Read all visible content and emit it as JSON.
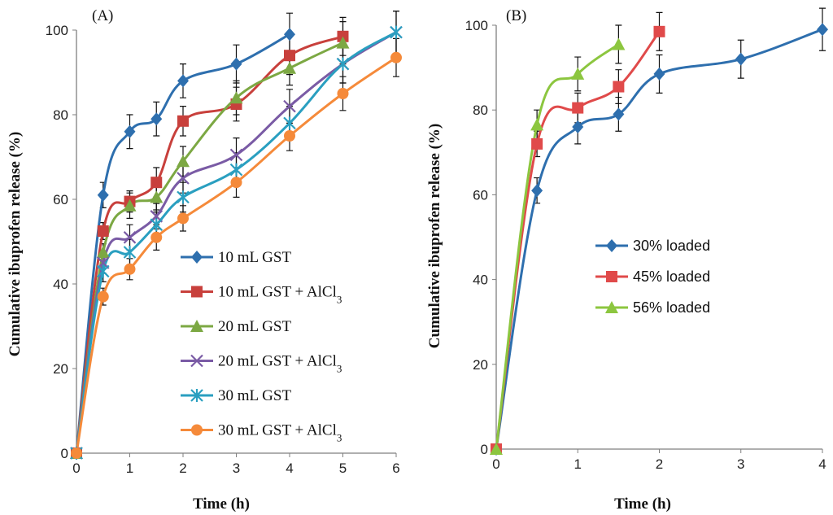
{
  "chart_data": [
    {
      "panel": "(A)",
      "type": "line",
      "xlabel": "Time (h)",
      "ylabel": "Cumulative ibuprofen release  (%)",
      "xlim": [
        0,
        6
      ],
      "ylim": [
        0,
        100
      ],
      "xticks": [
        0,
        1,
        2,
        3,
        4,
        5,
        6
      ],
      "yticks": [
        0,
        20,
        40,
        60,
        80,
        100
      ],
      "legend_position": "center-right",
      "series": [
        {
          "name": "10 mL GST",
          "base": "10 mL GST",
          "sub": "",
          "color": "#2e6fae",
          "marker": "diamond",
          "x": [
            0,
            0.5,
            1,
            1.5,
            2,
            3,
            4
          ],
          "y": [
            0,
            61,
            76,
            79,
            88,
            92,
            99
          ],
          "err": [
            0,
            3,
            4,
            4,
            4,
            4.5,
            5
          ]
        },
        {
          "name": "10 mL GST + AlCl3",
          "base": "10 mL GST + AlCl",
          "sub": "3",
          "color": "#c8403c",
          "marker": "square",
          "x": [
            0,
            0.5,
            1,
            1.5,
            2,
            3,
            4,
            5
          ],
          "y": [
            0,
            52.5,
            59.5,
            64,
            78.5,
            82.5,
            94,
            98.5
          ],
          "err": [
            0,
            2,
            2.5,
            3.5,
            3.5,
            4,
            4.5,
            4.5
          ]
        },
        {
          "name": "20 mL GST",
          "base": "20 mL GST",
          "sub": "",
          "color": "#7ca843",
          "marker": "triangle",
          "x": [
            0,
            0.5,
            1,
            1.5,
            2,
            3,
            4,
            5
          ],
          "y": [
            0,
            47.5,
            58.5,
            60.5,
            69,
            84,
            91,
            97
          ],
          "err": [
            0,
            2,
            3,
            3,
            3.5,
            4,
            4,
            5
          ]
        },
        {
          "name": "20 mL GST + AlCl3",
          "base": "20 mL GST + AlCl",
          "sub": "3",
          "color": "#7a5ba5",
          "marker": "x",
          "x": [
            0,
            0.5,
            1,
            1.5,
            2,
            3,
            4,
            5,
            6
          ],
          "y": [
            0,
            45,
            51,
            56,
            65,
            70.5,
            82,
            92,
            99.5
          ],
          "err": [
            0,
            2.5,
            3,
            3,
            3.5,
            4,
            4,
            4.5,
            5
          ]
        },
        {
          "name": "30 mL GST",
          "base": "30 mL GST",
          "sub": "",
          "color": "#2a9fc0",
          "marker": "asterisk",
          "x": [
            0,
            0.5,
            1,
            1.5,
            2,
            3,
            4,
            5,
            6
          ],
          "y": [
            0,
            43,
            47.5,
            54,
            60.5,
            67,
            78,
            92,
            99.5
          ],
          "err": [
            0,
            2.5,
            3,
            3,
            3.5,
            4,
            4,
            4.5,
            5
          ]
        },
        {
          "name": "30 mL GST + AlCl3",
          "base": "30 mL GST + AlCl",
          "sub": "3",
          "color": "#f58a3a",
          "marker": "circle",
          "x": [
            0,
            0.5,
            1,
            1.5,
            2,
            3,
            4,
            5,
            6
          ],
          "y": [
            0,
            37,
            43.5,
            51,
            55.5,
            64,
            75,
            85,
            93.5
          ],
          "err": [
            0,
            2,
            2.5,
            3,
            3,
            3.5,
            3.5,
            4,
            4.5
          ]
        }
      ]
    },
    {
      "panel": "(B)",
      "type": "line",
      "xlabel": "Time (h)",
      "ylabel": "Cumulative ibuprofen release (%)",
      "xlim": [
        0,
        4
      ],
      "ylim": [
        0,
        100
      ],
      "xticks": [
        0,
        1,
        2,
        3,
        4
      ],
      "yticks": [
        0,
        20,
        40,
        60,
        80,
        100
      ],
      "legend_position": "center",
      "series": [
        {
          "name": "30% loaded",
          "base": "30% loaded",
          "sub": "",
          "color": "#2e6fae",
          "marker": "diamond",
          "x": [
            0,
            0.5,
            1,
            1.5,
            2,
            3,
            4
          ],
          "y": [
            0,
            61,
            76,
            79,
            88.5,
            92,
            99
          ],
          "err": [
            0,
            3,
            4,
            4,
            4.5,
            4.5,
            5
          ]
        },
        {
          "name": "45% loaded",
          "base": "45% loaded",
          "sub": "",
          "color": "#e04a4a",
          "marker": "square",
          "x": [
            0,
            0.5,
            1,
            1.5,
            2
          ],
          "y": [
            0,
            72,
            80.5,
            85.5,
            98.5
          ],
          "err": [
            0,
            3,
            3.5,
            4,
            4.5
          ]
        },
        {
          "name": "56% loaded",
          "base": "56% loaded",
          "sub": "",
          "color": "#8cc63f",
          "marker": "triangle",
          "x": [
            0,
            0.5,
            1,
            1.5
          ],
          "y": [
            0,
            76.5,
            88.5,
            95.5
          ],
          "err": [
            0,
            3.5,
            4,
            4.5
          ]
        }
      ]
    }
  ]
}
